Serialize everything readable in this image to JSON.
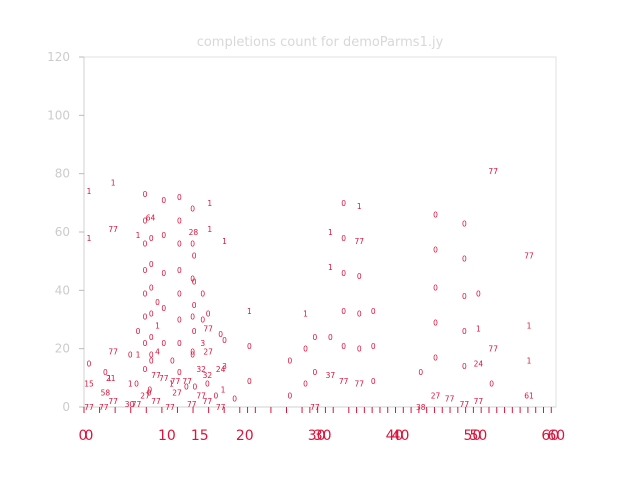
{
  "chart_data": {
    "type": "scatter",
    "title": "completions count for demoParms1.jy",
    "ylim": [
      0,
      120
    ],
    "yticks": [
      "0",
      "20",
      "40",
      "60",
      "80",
      "100",
      "120"
    ],
    "xlim": [
      0,
      60
    ],
    "xtick_labels_set_a": [
      "0",
      "10",
      "20",
      "30",
      "40",
      "50",
      "60"
    ],
    "xtick_labels_set_b": [
      "0",
      "15",
      "30",
      "40",
      "50",
      "60"
    ],
    "minor_x_ticks": [
      0,
      2,
      4,
      6,
      8,
      10,
      12,
      14,
      16,
      18,
      20,
      21,
      22,
      24,
      26,
      28,
      29,
      30,
      31,
      32,
      34,
      35,
      36,
      37,
      38,
      39,
      40,
      41,
      42,
      43,
      44,
      45,
      46,
      47,
      48,
      49,
      50,
      51,
      52,
      53,
      54,
      55,
      56,
      57,
      58,
      59,
      60
    ],
    "grid": false,
    "marker_color": "#dc143c",
    "points": [
      {
        "x": 0.0,
        "y": 74,
        "label": "1"
      },
      {
        "x": 0.0,
        "y": 58,
        "label": "1"
      },
      {
        "x": 0.0,
        "y": 15,
        "label": "0"
      },
      {
        "x": 0.0,
        "y": 8,
        "label": "15"
      },
      {
        "x": 0.0,
        "y": 0,
        "label": "77"
      },
      {
        "x": 1.9,
        "y": 0,
        "label": "77"
      },
      {
        "x": 2.1,
        "y": 5,
        "label": "58"
      },
      {
        "x": 2.1,
        "y": 12,
        "label": "0"
      },
      {
        "x": 2.6,
        "y": 10,
        "label": "1"
      },
      {
        "x": 2.8,
        "y": 10,
        "label": "21"
      },
      {
        "x": 3.1,
        "y": 19,
        "label": "77"
      },
      {
        "x": 3.1,
        "y": 61,
        "label": "77"
      },
      {
        "x": 3.1,
        "y": 77,
        "label": "1"
      },
      {
        "x": 3.1,
        "y": 2,
        "label": "77"
      },
      {
        "x": 5.2,
        "y": 1,
        "label": "30"
      },
      {
        "x": 5.3,
        "y": 8,
        "label": "1"
      },
      {
        "x": 5.3,
        "y": 18,
        "label": "0"
      },
      {
        "x": 6.1,
        "y": 1,
        "label": "77"
      },
      {
        "x": 6.1,
        "y": 8,
        "label": "0"
      },
      {
        "x": 6.3,
        "y": 18,
        "label": "1"
      },
      {
        "x": 6.3,
        "y": 26,
        "label": "0"
      },
      {
        "x": 6.3,
        "y": 59,
        "label": "1"
      },
      {
        "x": 7.2,
        "y": 4,
        "label": "27"
      },
      {
        "x": 7.2,
        "y": 13,
        "label": "0"
      },
      {
        "x": 7.2,
        "y": 22,
        "label": "0"
      },
      {
        "x": 7.2,
        "y": 31,
        "label": "0"
      },
      {
        "x": 7.2,
        "y": 39,
        "label": "0"
      },
      {
        "x": 7.2,
        "y": 47,
        "label": "0"
      },
      {
        "x": 7.2,
        "y": 56,
        "label": "0"
      },
      {
        "x": 7.2,
        "y": 64,
        "label": "0"
      },
      {
        "x": 7.2,
        "y": 73,
        "label": "0"
      },
      {
        "x": 7.7,
        "y": 5,
        "label": "0"
      },
      {
        "x": 7.8,
        "y": 6,
        "label": "0"
      },
      {
        "x": 7.9,
        "y": 65,
        "label": "64"
      },
      {
        "x": 8.0,
        "y": 16,
        "label": "0"
      },
      {
        "x": 8.0,
        "y": 18,
        "label": "0"
      },
      {
        "x": 8.0,
        "y": 24,
        "label": "0"
      },
      {
        "x": 8.0,
        "y": 32,
        "label": "0"
      },
      {
        "x": 8.0,
        "y": 41,
        "label": "0"
      },
      {
        "x": 8.0,
        "y": 49,
        "label": "0"
      },
      {
        "x": 8.0,
        "y": 58,
        "label": "0"
      },
      {
        "x": 8.6,
        "y": 2,
        "label": "77"
      },
      {
        "x": 8.6,
        "y": 11,
        "label": "77"
      },
      {
        "x": 8.8,
        "y": 19,
        "label": "4"
      },
      {
        "x": 8.8,
        "y": 28,
        "label": "1"
      },
      {
        "x": 8.8,
        "y": 36,
        "label": "0"
      },
      {
        "x": 9.6,
        "y": 10,
        "label": "77"
      },
      {
        "x": 9.6,
        "y": 22,
        "label": "0"
      },
      {
        "x": 9.6,
        "y": 34,
        "label": "0"
      },
      {
        "x": 9.6,
        "y": 46,
        "label": "0"
      },
      {
        "x": 9.6,
        "y": 59,
        "label": "0"
      },
      {
        "x": 9.6,
        "y": 71,
        "label": "0"
      },
      {
        "x": 10.4,
        "y": 0,
        "label": "77"
      },
      {
        "x": 10.6,
        "y": 8,
        "label": "1"
      },
      {
        "x": 10.7,
        "y": 16,
        "label": "0"
      },
      {
        "x": 11.1,
        "y": 9,
        "label": "77"
      },
      {
        "x": 11.3,
        "y": 5,
        "label": "27"
      },
      {
        "x": 11.6,
        "y": 12,
        "label": "0"
      },
      {
        "x": 11.6,
        "y": 22,
        "label": "0"
      },
      {
        "x": 11.6,
        "y": 30,
        "label": "0"
      },
      {
        "x": 11.6,
        "y": 39,
        "label": "0"
      },
      {
        "x": 11.6,
        "y": 47,
        "label": "0"
      },
      {
        "x": 11.6,
        "y": 56,
        "label": "0"
      },
      {
        "x": 11.6,
        "y": 64,
        "label": "0"
      },
      {
        "x": 11.6,
        "y": 72,
        "label": "0"
      },
      {
        "x": 12.5,
        "y": 7,
        "label": "0"
      },
      {
        "x": 12.6,
        "y": 9,
        "label": "77"
      },
      {
        "x": 13.2,
        "y": 1,
        "label": "77"
      },
      {
        "x": 13.3,
        "y": 18,
        "label": "0"
      },
      {
        "x": 13.3,
        "y": 19,
        "label": "0"
      },
      {
        "x": 13.3,
        "y": 31,
        "label": "0"
      },
      {
        "x": 13.3,
        "y": 44,
        "label": "0"
      },
      {
        "x": 13.3,
        "y": 56,
        "label": "0"
      },
      {
        "x": 13.3,
        "y": 68,
        "label": "0"
      },
      {
        "x": 13.4,
        "y": 60,
        "label": "28"
      },
      {
        "x": 13.5,
        "y": 26,
        "label": "0"
      },
      {
        "x": 13.5,
        "y": 35,
        "label": "0"
      },
      {
        "x": 13.5,
        "y": 43,
        "label": "0"
      },
      {
        "x": 13.5,
        "y": 52,
        "label": "0"
      },
      {
        "x": 13.6,
        "y": 7,
        "label": "0"
      },
      {
        "x": 14.4,
        "y": 4,
        "label": "77"
      },
      {
        "x": 14.4,
        "y": 13,
        "label": "32"
      },
      {
        "x": 14.6,
        "y": 22,
        "label": "3"
      },
      {
        "x": 14.6,
        "y": 30,
        "label": "0"
      },
      {
        "x": 14.6,
        "y": 39,
        "label": "0"
      },
      {
        "x": 15.2,
        "y": 2,
        "label": "77"
      },
      {
        "x": 15.2,
        "y": 8,
        "label": "0"
      },
      {
        "x": 15.2,
        "y": 11,
        "label": "32"
      },
      {
        "x": 15.3,
        "y": 19,
        "label": "27"
      },
      {
        "x": 15.3,
        "y": 27,
        "label": "77"
      },
      {
        "x": 15.3,
        "y": 32,
        "label": "0"
      },
      {
        "x": 15.5,
        "y": 61,
        "label": "1"
      },
      {
        "x": 15.5,
        "y": 70,
        "label": "1"
      },
      {
        "x": 16.3,
        "y": 4,
        "label": "0"
      },
      {
        "x": 16.9,
        "y": 0,
        "label": "77"
      },
      {
        "x": 16.9,
        "y": 13,
        "label": "24"
      },
      {
        "x": 16.9,
        "y": 25,
        "label": "0"
      },
      {
        "x": 17.2,
        "y": 6,
        "label": "1"
      },
      {
        "x": 17.4,
        "y": 14,
        "label": "3"
      },
      {
        "x": 17.4,
        "y": 23,
        "label": "0"
      },
      {
        "x": 17.4,
        "y": 57,
        "label": "1"
      },
      {
        "x": 18.7,
        "y": 3,
        "label": "0"
      },
      {
        "x": 20.6,
        "y": 9,
        "label": "0"
      },
      {
        "x": 20.6,
        "y": 21,
        "label": "0"
      },
      {
        "x": 20.6,
        "y": 33,
        "label": "1"
      },
      {
        "x": 25.8,
        "y": 4,
        "label": "0"
      },
      {
        "x": 25.8,
        "y": 16,
        "label": "0"
      },
      {
        "x": 27.8,
        "y": 8,
        "label": "0"
      },
      {
        "x": 27.8,
        "y": 20,
        "label": "0"
      },
      {
        "x": 27.8,
        "y": 32,
        "label": "1"
      },
      {
        "x": 29.0,
        "y": 0,
        "label": "77"
      },
      {
        "x": 29.0,
        "y": 12,
        "label": "0"
      },
      {
        "x": 29.0,
        "y": 24,
        "label": "0"
      },
      {
        "x": 31.0,
        "y": 11,
        "label": "37"
      },
      {
        "x": 31.0,
        "y": 24,
        "label": "0"
      },
      {
        "x": 31.0,
        "y": 48,
        "label": "1"
      },
      {
        "x": 31.0,
        "y": 60,
        "label": "1"
      },
      {
        "x": 32.7,
        "y": 9,
        "label": "77"
      },
      {
        "x": 32.7,
        "y": 21,
        "label": "0"
      },
      {
        "x": 32.7,
        "y": 33,
        "label": "0"
      },
      {
        "x": 32.7,
        "y": 46,
        "label": "0"
      },
      {
        "x": 32.7,
        "y": 58,
        "label": "0"
      },
      {
        "x": 32.7,
        "y": 70,
        "label": "0"
      },
      {
        "x": 34.7,
        "y": 8,
        "label": "77"
      },
      {
        "x": 34.7,
        "y": 20,
        "label": "0"
      },
      {
        "x": 34.7,
        "y": 32,
        "label": "0"
      },
      {
        "x": 34.7,
        "y": 45,
        "label": "0"
      },
      {
        "x": 34.7,
        "y": 57,
        "label": "77"
      },
      {
        "x": 34.7,
        "y": 69,
        "label": "1"
      },
      {
        "x": 36.5,
        "y": 9,
        "label": "0"
      },
      {
        "x": 36.5,
        "y": 21,
        "label": "0"
      },
      {
        "x": 36.5,
        "y": 33,
        "label": "0"
      },
      {
        "x": 42.6,
        "y": 12,
        "label": "0"
      },
      {
        "x": 42.6,
        "y": 0,
        "label": "38"
      },
      {
        "x": 44.5,
        "y": 4,
        "label": "27"
      },
      {
        "x": 44.5,
        "y": 17,
        "label": "0"
      },
      {
        "x": 44.5,
        "y": 29,
        "label": "0"
      },
      {
        "x": 44.5,
        "y": 41,
        "label": "0"
      },
      {
        "x": 44.5,
        "y": 54,
        "label": "0"
      },
      {
        "x": 44.5,
        "y": 66,
        "label": "0"
      },
      {
        "x": 46.3,
        "y": 3,
        "label": "77"
      },
      {
        "x": 48.2,
        "y": 1,
        "label": "77"
      },
      {
        "x": 48.2,
        "y": 14,
        "label": "0"
      },
      {
        "x": 48.2,
        "y": 26,
        "label": "0"
      },
      {
        "x": 48.2,
        "y": 38,
        "label": "0"
      },
      {
        "x": 48.2,
        "y": 51,
        "label": "0"
      },
      {
        "x": 48.2,
        "y": 63,
        "label": "0"
      },
      {
        "x": 50.0,
        "y": 2,
        "label": "77"
      },
      {
        "x": 50.0,
        "y": 15,
        "label": "24"
      },
      {
        "x": 50.0,
        "y": 27,
        "label": "1"
      },
      {
        "x": 50.0,
        "y": 39,
        "label": "0"
      },
      {
        "x": 51.7,
        "y": 8,
        "label": "0"
      },
      {
        "x": 51.9,
        "y": 20,
        "label": "77"
      },
      {
        "x": 51.9,
        "y": 81,
        "label": "77"
      },
      {
        "x": 56.5,
        "y": 4,
        "label": "61"
      },
      {
        "x": 56.5,
        "y": 16,
        "label": "1"
      },
      {
        "x": 56.5,
        "y": 28,
        "label": "1"
      },
      {
        "x": 56.5,
        "y": 52,
        "label": "77"
      }
    ]
  }
}
